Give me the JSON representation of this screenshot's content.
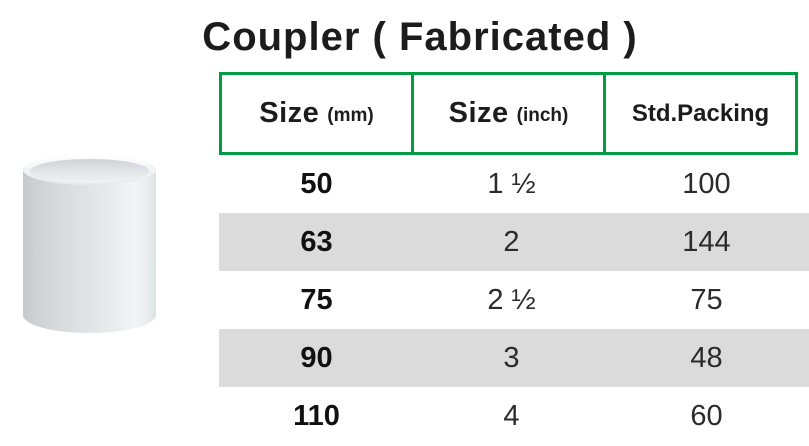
{
  "title": "Coupler ( Fabricated )",
  "colors": {
    "header_border_green": "#009b43",
    "alt_row_gray": "#dbdbdb",
    "text_black": "#1c1c1c"
  },
  "product_image": {
    "icon": "pvc-coupler-cylinder-photo"
  },
  "table": {
    "headers": [
      {
        "main": "Size",
        "sub": "(mm)"
      },
      {
        "main": "Size",
        "sub": "(inch)"
      },
      {
        "main": "Std.Packing",
        "sub": ""
      }
    ],
    "rows": [
      [
        "50",
        "1 ½",
        "100"
      ],
      [
        "63",
        "2",
        "144"
      ],
      [
        "75",
        "2 ½",
        "75"
      ],
      [
        "90",
        "3",
        "48"
      ],
      [
        "110",
        "4",
        "60"
      ]
    ]
  }
}
